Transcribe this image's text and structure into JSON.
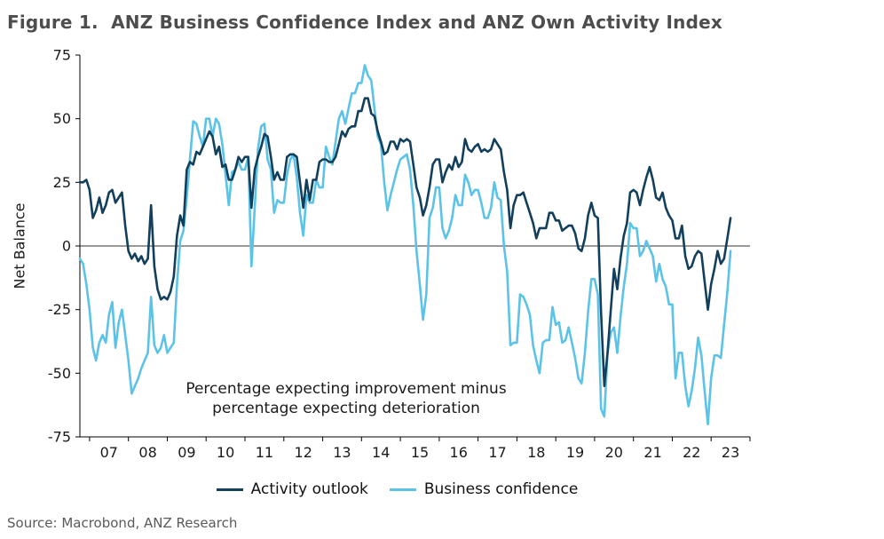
{
  "figure": {
    "title": "Figure 1.  ANZ Business Confidence Index and ANZ Own Activity Index",
    "source": "Source: Macrobond, ANZ Research"
  },
  "chart_data": {
    "type": "line",
    "title": "ANZ Business Confidence Index and ANZ Own Activity Index",
    "ylabel": "Net Balance",
    "ylim": [
      -75,
      75
    ],
    "yticks": [
      75,
      50,
      25,
      0,
      -25,
      -50,
      -75
    ],
    "x_start": 2006.75,
    "x_end": 2024.0,
    "x_step": "monthly",
    "xtick_year_start": 2007,
    "xtick_labels": [
      "07",
      "08",
      "09",
      "10",
      "11",
      "12",
      "13",
      "14",
      "15",
      "16",
      "17",
      "18",
      "19",
      "20",
      "21",
      "22",
      "23"
    ],
    "grid": false,
    "zero_line": true,
    "legend_position": "bottom",
    "annotation": [
      "Percentage expecting improvement minus",
      "percentage expecting deterioration"
    ],
    "series": [
      {
        "name": "Activity outlook",
        "color": "#123f5c",
        "start": "2006-10",
        "values": [
          25,
          25,
          26,
          22,
          11,
          14,
          19,
          13,
          16,
          21,
          22,
          17,
          19,
          21,
          8,
          -2,
          -5,
          -3,
          -6,
          -4,
          -7,
          -5,
          16,
          -8,
          -17,
          -21,
          -20,
          -21,
          -18,
          -12,
          4,
          12,
          8,
          30,
          33,
          32,
          37,
          36,
          39,
          42,
          45,
          43,
          36,
          39,
          31,
          32,
          26,
          26,
          30,
          35,
          33,
          35,
          35,
          15,
          30,
          35,
          39,
          44,
          43,
          35,
          26,
          29,
          26,
          26,
          35,
          36,
          36,
          35,
          25,
          15,
          26,
          18,
          26,
          26,
          33,
          34,
          34,
          33,
          33,
          35,
          40,
          45,
          43,
          46,
          47,
          47,
          53,
          53,
          58,
          58,
          52,
          51,
          45,
          41,
          36,
          37,
          41,
          41,
          38,
          42,
          41,
          42,
          41,
          32,
          23,
          19,
          12,
          16,
          23,
          32,
          34,
          34,
          25,
          29,
          32,
          30,
          35,
          31,
          33,
          42,
          38,
          37,
          39,
          40,
          37,
          38,
          37,
          38,
          42,
          40,
          38,
          29,
          22,
          7,
          16,
          20,
          20,
          21,
          17,
          13,
          9,
          3,
          7,
          7,
          7,
          13,
          13,
          10,
          10,
          6,
          7,
          8,
          8,
          5,
          -1,
          -2,
          3,
          12,
          17,
          12,
          11,
          -26,
          -55,
          -42,
          -25,
          -9,
          -17,
          -5,
          4,
          9,
          21,
          22,
          21,
          16,
          22,
          27,
          31,
          26,
          19,
          18,
          21,
          15,
          12,
          10,
          3,
          3,
          8,
          -4,
          -9,
          -8,
          -4,
          -2,
          -3,
          -14,
          -25,
          -15,
          -9,
          -2,
          -7,
          -5,
          3,
          11
        ]
      },
      {
        "name": "Business confidence",
        "color": "#5cc3e8",
        "start": "2006-10",
        "values": [
          -5,
          -7,
          -15,
          -25,
          -40,
          -45,
          -38,
          -35,
          -38,
          -27,
          -22,
          -40,
          -30,
          -25,
          -35,
          -45,
          -58,
          -55,
          -52,
          -48,
          -45,
          -42,
          -20,
          -39,
          -42,
          -40,
          -35,
          -42,
          -40,
          -38,
          -15,
          2,
          6,
          19,
          34,
          49,
          48,
          43,
          39,
          50,
          50,
          43,
          50,
          48,
          40,
          28,
          16,
          29,
          30,
          33,
          30,
          30,
          35,
          -8,
          15,
          38,
          47,
          48,
          34,
          30,
          13,
          18,
          17,
          17,
          28,
          34,
          36,
          27,
          13,
          4,
          20,
          17,
          17,
          26,
          23,
          23,
          39,
          35,
          32,
          41,
          50,
          53,
          48,
          54,
          60,
          60,
          64,
          64,
          71,
          67,
          65,
          54,
          43,
          40,
          25,
          14,
          20,
          25,
          30,
          34,
          35,
          36,
          30,
          16,
          -2,
          -15,
          -29,
          -19,
          11,
          15,
          23,
          23,
          7,
          3,
          6,
          11,
          20,
          16,
          16,
          28,
          25,
          20,
          22,
          22,
          17,
          11,
          11,
          15,
          25,
          19,
          18,
          0,
          -10,
          -39,
          -38,
          -38,
          -19,
          -20,
          -23,
          -27,
          -39,
          -45,
          -50,
          -38,
          -37,
          -37,
          -24,
          -31,
          -30,
          -38,
          -37,
          -32,
          -38,
          -44,
          -52,
          -54,
          -42,
          -26,
          -13,
          -13,
          -19,
          -64,
          -67,
          -42,
          -34,
          -32,
          -42,
          -28,
          -16,
          -7,
          9,
          7,
          7,
          -4,
          -2,
          2,
          -1,
          -4,
          -14,
          -7,
          -13,
          -16,
          -23,
          -23,
          -52,
          -42,
          -42,
          -55,
          -63,
          -57,
          -48,
          -36,
          -43,
          -57,
          -70,
          -52,
          -43,
          -43,
          -44,
          -31,
          -18,
          -2
        ]
      }
    ]
  }
}
